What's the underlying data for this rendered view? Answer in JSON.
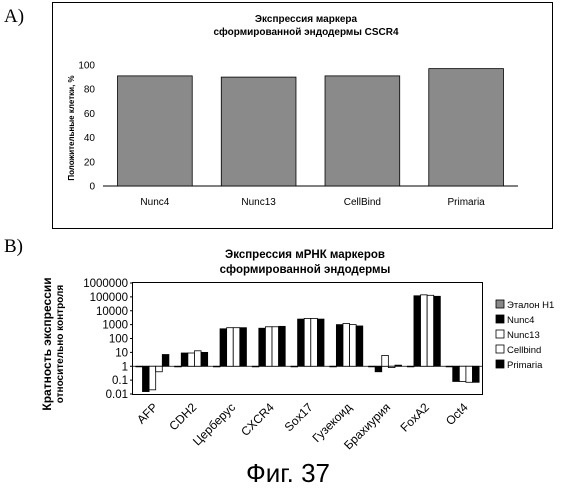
{
  "figure": {
    "panel_a_label": "A)",
    "panel_b_label": "B)",
    "caption": "Фиг. 37"
  },
  "chart_data": [
    {
      "type": "bar",
      "title_line1": "Экспрессия маркера",
      "title_line2": "сформированной эндодермы CSCR4",
      "ylabel": "Положительные клетки, %",
      "xlabel": "",
      "categories": [
        "Nunc4",
        "Nunc13",
        "CellBind",
        "Primaria"
      ],
      "values": [
        91,
        90,
        91,
        97
      ],
      "ylim": [
        0,
        100
      ],
      "yticks": [
        0,
        20,
        40,
        60,
        80,
        100
      ],
      "bar_color": "#8a8a8a",
      "grid": false
    },
    {
      "type": "bar",
      "scale": "log",
      "title_line1": "Экспрессия мРНК маркеров",
      "title_line2": "сформированной эндодермы",
      "ylabel_line1": "Кратность экспрессии",
      "ylabel_line2": "относительно контроля",
      "xlabel": "",
      "categories": [
        "AFP",
        "CDH2",
        "Церберус",
        "CXCR4",
        "Sox17",
        "Гузекоид",
        "Брахиурия",
        "FoxA2",
        "Oct4"
      ],
      "ylim": [
        0.01,
        1000000
      ],
      "yticks": [
        "0.01",
        "0.1",
        "1",
        "10",
        "100",
        "1000",
        "10000",
        "100000",
        "1000000"
      ],
      "legend_position": "right",
      "grid": false,
      "series": [
        {
          "name": "Эталон H1",
          "color": "#888888",
          "stroke": "#000000",
          "values": [
            1,
            1,
            1,
            1,
            1,
            1,
            1,
            1,
            1
          ]
        },
        {
          "name": "Nunc4",
          "color": "#000000",
          "stroke": "#000000",
          "values": [
            0.015,
            9,
            500,
            550,
            2500,
            1000,
            0.4,
            120000,
            0.08
          ]
        },
        {
          "name": "Nunc13",
          "color": "#ffffff",
          "stroke": "#000000",
          "values": [
            0.02,
            9,
            600,
            700,
            2800,
            1200,
            6,
            140000,
            0.08
          ]
        },
        {
          "name": "Cellbind",
          "color": "#ffffff",
          "stroke": "#000000",
          "values": [
            0.4,
            13,
            600,
            700,
            2800,
            1000,
            0.8,
            130000,
            0.07
          ]
        },
        {
          "name": "Primaria",
          "color": "#000000",
          "stroke": "#000000",
          "values": [
            7,
            10,
            600,
            750,
            2500,
            800,
            1.2,
            110000,
            0.07
          ]
        }
      ]
    }
  ]
}
